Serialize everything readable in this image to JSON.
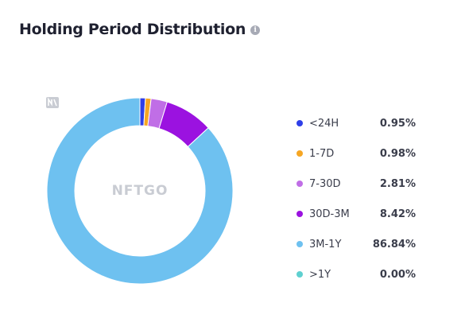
{
  "header": {
    "title": "Holding Period Distribution",
    "info_icon": "info-icon"
  },
  "watermark": {
    "text": "NFTGO"
  },
  "colors": {
    "<24H": "#2f3fe8",
    "1-7D": "#f6a623",
    "7-30D": "#c06ee6",
    "30D-3M": "#9b12e0",
    "3M-1Y": "#6ec1f0",
    ">1Y": "#5fd0d0"
  },
  "chart_data": {
    "type": "pie",
    "donut": true,
    "categories": [
      "<24H",
      "1-7D",
      "7-30D",
      "30D-3M",
      "3M-1Y",
      ">1Y"
    ],
    "values": [
      0.95,
      0.98,
      2.81,
      8.42,
      86.84,
      0.0
    ],
    "value_labels": [
      "0.95%",
      "0.98%",
      "2.81%",
      "8.42%",
      "86.84%",
      "0.00%"
    ],
    "legend_position": "right"
  }
}
